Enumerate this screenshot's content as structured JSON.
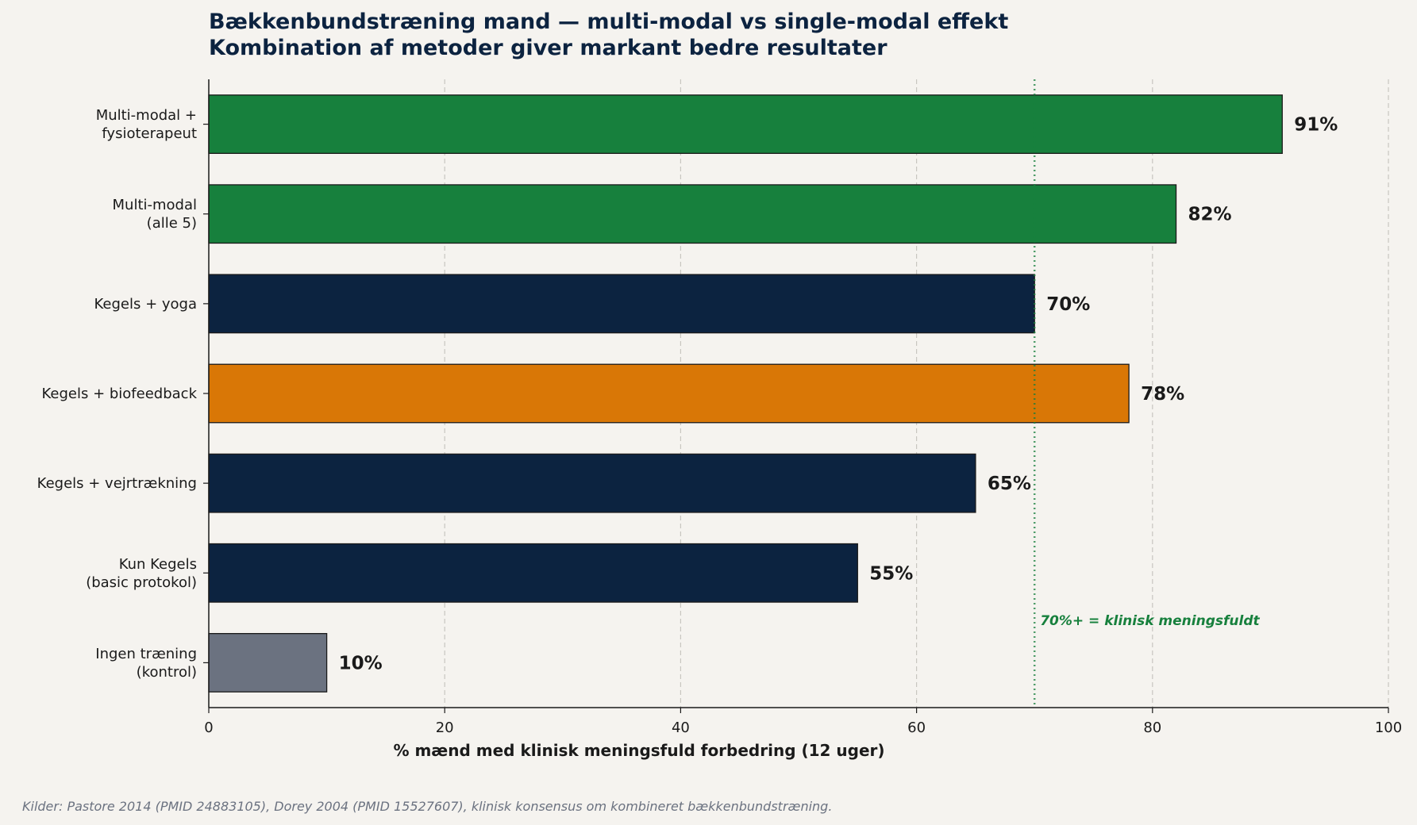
{
  "chart_data": {
    "type": "bar",
    "orientation": "horizontal",
    "title": "Bækkenbundstræning mand — multi-modal vs single-modal effekt",
    "subtitle": "Kombination af metoder giver markant bedre resultater",
    "xlabel": "% mænd med klinisk meningsfuld forbedring (12 uger)",
    "ylabel": "",
    "xlim": [
      0,
      100
    ],
    "x_ticks": [
      0,
      20,
      40,
      60,
      80,
      100
    ],
    "grid": "vertical dashed",
    "categories": [
      [
        "Multi-modal +",
        "fysioterapeut"
      ],
      [
        "Multi-modal",
        "(alle 5)"
      ],
      [
        "Kegels + yoga"
      ],
      [
        "Kegels + biofeedback"
      ],
      [
        "Kegels + vejrtrækning"
      ],
      [
        "Kun Kegels",
        "(basic protokol)"
      ],
      [
        "Ingen træning",
        "(kontrol)"
      ]
    ],
    "values": [
      91,
      82,
      70,
      78,
      65,
      55,
      10
    ],
    "value_labels": [
      "91%",
      "82%",
      "70%",
      "78%",
      "65%",
      "55%",
      "10%"
    ],
    "colors": [
      "#17803d",
      "#17803d",
      "#0c2340",
      "#d97706",
      "#0c2340",
      "#0c2340",
      "#6b7280"
    ],
    "reference_line": {
      "value": 70,
      "label": "70%+ = klinisk meningsfuldt",
      "color": "#17803d"
    },
    "source": "Kilder: Pastore 2014 (PMID 24883105), Dorey 2004 (PMID 15527607), klinisk konsensus om kombineret bækkenbundstræning."
  }
}
